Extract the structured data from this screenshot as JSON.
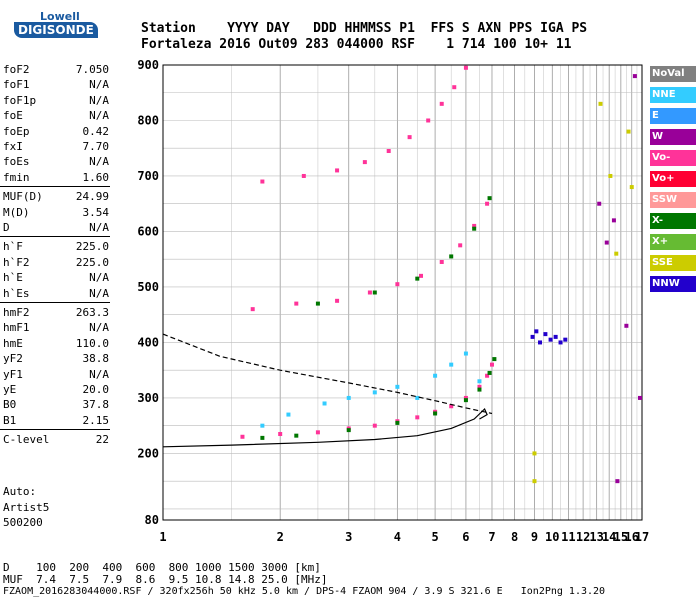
{
  "logo": {
    "top": "Lowell",
    "bottom": "DIGISONDE"
  },
  "header": {
    "labels": "Station    YYYY DAY   DDD HHMMSS P1  FFS S AXN PPS IGA PS",
    "values": "Fortaleza 2016 Out09 283 044000 RSF    1 714 100 10+ 11"
  },
  "params": [
    {
      "label": "foF2",
      "value": "7.050"
    },
    {
      "label": "foF1",
      "value": "N/A"
    },
    {
      "label": "foF1p",
      "value": "N/A"
    },
    {
      "label": "foE",
      "value": "N/A"
    },
    {
      "label": "foEp",
      "value": "0.42"
    },
    {
      "label": "fxI",
      "value": "7.70"
    },
    {
      "label": "foEs",
      "value": "N/A"
    },
    {
      "label": "fmin",
      "value": "1.60"
    },
    {
      "label": "MUF(D)",
      "value": "24.99"
    },
    {
      "label": "M(D)",
      "value": "3.54"
    },
    {
      "label": "D",
      "value": "N/A"
    },
    {
      "label": "h`F",
      "value": "225.0"
    },
    {
      "label": "h`F2",
      "value": "225.0"
    },
    {
      "label": "h`E",
      "value": "N/A"
    },
    {
      "label": "h`Es",
      "value": "N/A"
    },
    {
      "label": "hmF2",
      "value": "263.3"
    },
    {
      "label": "hmF1",
      "value": "N/A"
    },
    {
      "label": "hmE",
      "value": "110.0"
    },
    {
      "label": "yF2",
      "value": "38.8"
    },
    {
      "label": "yF1",
      "value": "N/A"
    },
    {
      "label": "yE",
      "value": "20.0"
    },
    {
      "label": "B0",
      "value": "37.8"
    },
    {
      "label": "B1",
      "value": "2.15"
    },
    {
      "label": "C-level",
      "value": "22"
    }
  ],
  "notes": {
    "line1": "Auto:",
    "line2": "Artist5",
    "line3": "500200"
  },
  "legend": [
    {
      "label": "NoVal",
      "color": "#808080"
    },
    {
      "label": "NNE",
      "color": "#33ccff"
    },
    {
      "label": "E",
      "color": "#3399ff"
    },
    {
      "label": "W",
      "color": "#990099"
    },
    {
      "label": "Vo-",
      "color": "#ff3399"
    },
    {
      "label": "Vo+",
      "color": "#ff0033"
    },
    {
      "label": "SSW",
      "color": "#ff9999"
    },
    {
      "label": "X-",
      "color": "#007700"
    },
    {
      "label": "X+",
      "color": "#66bb33"
    },
    {
      "label": "SSE",
      "color": "#cccc00"
    },
    {
      "label": "NNW",
      "color": "#2200cc"
    }
  ],
  "bottom": {
    "d_row": "D    100  200  400  600  800 1000 1500 3000 [km]",
    "muf_row": "MUF  7.4  7.5  7.9  8.6  9.5 10.8 14.8 25.0 [MHz]",
    "footer": "FZAOM_2016283044000.RSF / 320fx256h 50 kHz 5.0 km / DPS-4 FZAOM 904 / 3.9 S 321.6 E   Ion2Png 1.3.20"
  },
  "chart_data": {
    "type": "scatter",
    "title": "",
    "xlabel": "",
    "ylabel": "",
    "xlim": [
      1,
      17
    ],
    "ylim": [
      80,
      900
    ],
    "x_ticks": [
      1,
      2,
      3,
      4,
      5,
      6,
      7,
      8,
      9,
      10,
      11,
      12,
      13,
      14,
      15,
      16,
      17
    ],
    "y_ticks": [
      80,
      200,
      300,
      400,
      500,
      600,
      700,
      800,
      900
    ],
    "grid": true,
    "scale_notes": "x axis frequency in MHz (log scale), y axis virtual height in km",
    "series": [
      {
        "color": "#ff3399",
        "points": [
          [
            1.6,
            230
          ],
          [
            2.0,
            235
          ],
          [
            2.5,
            238
          ],
          [
            3.0,
            245
          ],
          [
            3.5,
            250
          ],
          [
            4.0,
            258
          ],
          [
            4.5,
            265
          ],
          [
            5.0,
            275
          ],
          [
            5.5,
            285
          ],
          [
            6.0,
            300
          ],
          [
            6.5,
            320
          ],
          [
            6.8,
            340
          ],
          [
            7.0,
            360
          ]
        ]
      },
      {
        "color": "#007700",
        "points": [
          [
            1.8,
            228
          ],
          [
            2.2,
            232
          ],
          [
            3.0,
            242
          ],
          [
            4.0,
            255
          ],
          [
            5.0,
            272
          ],
          [
            6.0,
            296
          ],
          [
            6.5,
            315
          ],
          [
            6.9,
            345
          ],
          [
            7.1,
            370
          ]
        ]
      },
      {
        "color": "#33ccff",
        "points": [
          [
            1.8,
            250
          ],
          [
            2.1,
            270
          ],
          [
            2.6,
            290
          ],
          [
            3.0,
            300
          ],
          [
            3.5,
            310
          ],
          [
            4.0,
            320
          ],
          [
            4.5,
            300
          ],
          [
            5.0,
            340
          ],
          [
            5.5,
            360
          ],
          [
            6.0,
            380
          ],
          [
            6.5,
            330
          ]
        ]
      },
      {
        "color": "#ff3399",
        "points": [
          [
            1.7,
            460
          ],
          [
            2.2,
            470
          ],
          [
            2.8,
            475
          ],
          [
            3.4,
            490
          ],
          [
            4.0,
            505
          ],
          [
            4.6,
            520
          ],
          [
            5.2,
            545
          ],
          [
            5.8,
            575
          ],
          [
            6.3,
            610
          ],
          [
            6.8,
            650
          ]
        ]
      },
      {
        "color": "#007700",
        "points": [
          [
            2.5,
            470
          ],
          [
            3.5,
            490
          ],
          [
            4.5,
            515
          ],
          [
            5.5,
            555
          ],
          [
            6.3,
            605
          ],
          [
            6.9,
            660
          ]
        ]
      },
      {
        "color": "#ff3399",
        "points": [
          [
            1.8,
            690
          ],
          [
            2.3,
            700
          ],
          [
            2.8,
            710
          ],
          [
            3.3,
            725
          ],
          [
            3.8,
            745
          ],
          [
            4.3,
            770
          ],
          [
            4.8,
            800
          ],
          [
            5.2,
            830
          ],
          [
            5.6,
            860
          ],
          [
            6.0,
            895
          ]
        ]
      },
      {
        "color": "#2200cc",
        "points": [
          [
            8.9,
            410
          ],
          [
            9.1,
            420
          ],
          [
            9.3,
            400
          ],
          [
            9.6,
            415
          ],
          [
            9.9,
            405
          ],
          [
            10.2,
            410
          ],
          [
            10.5,
            400
          ],
          [
            10.8,
            405
          ]
        ]
      },
      {
        "color": "#cccc00",
        "points": [
          [
            9.0,
            200
          ],
          [
            9.0,
            150
          ],
          [
            13.3,
            830
          ],
          [
            14.1,
            700
          ],
          [
            14.6,
            560
          ],
          [
            15.7,
            780
          ],
          [
            16.0,
            680
          ]
        ]
      },
      {
        "color": "#990099",
        "points": [
          [
            13.2,
            650
          ],
          [
            13.8,
            580
          ],
          [
            14.4,
            620
          ],
          [
            14.7,
            150
          ],
          [
            15.5,
            430
          ],
          [
            16.3,
            880
          ],
          [
            16.8,
            300
          ]
        ]
      }
    ],
    "curves": [
      {
        "style": "dashed",
        "points": [
          [
            1.0,
            415
          ],
          [
            1.4,
            375
          ],
          [
            2.0,
            350
          ],
          [
            3.0,
            327
          ],
          [
            4.0,
            310
          ],
          [
            5.0,
            295
          ],
          [
            6.0,
            282
          ],
          [
            7.0,
            272
          ]
        ]
      },
      {
        "style": "solid",
        "points": [
          [
            1.0,
            212
          ],
          [
            1.5,
            215
          ],
          [
            2.5,
            220
          ],
          [
            3.5,
            225
          ],
          [
            4.5,
            232
          ],
          [
            5.5,
            245
          ],
          [
            6.3,
            262
          ],
          [
            6.7,
            280
          ],
          [
            6.8,
            270
          ],
          [
            6.5,
            262
          ]
        ]
      }
    ]
  }
}
